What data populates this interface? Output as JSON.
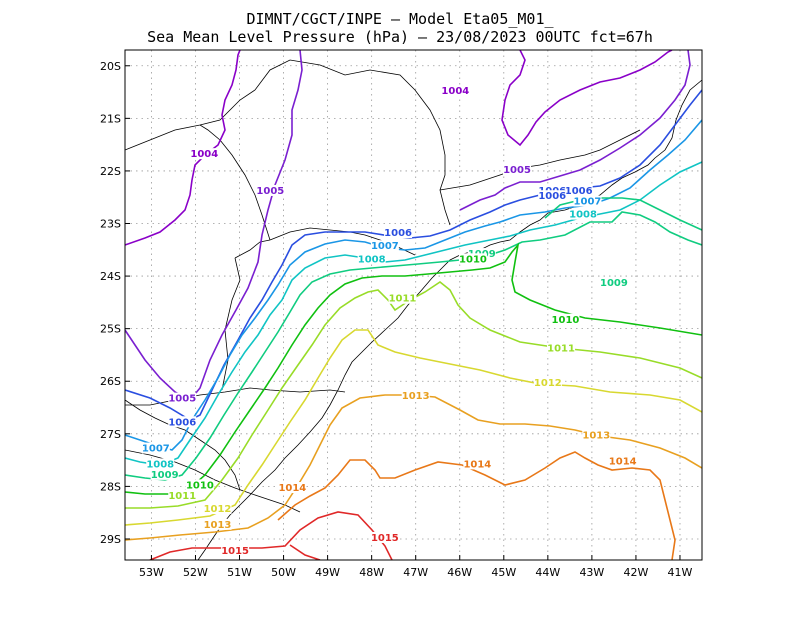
{
  "title_line1": "DIMNT/CGCT/INPE –  Model Eta05_M01_",
  "title_line2": "Sea Mean Level Pressure (hPa) – 23/08/2023 00UTC fct=67h",
  "chart_data": {
    "type": "contour-map",
    "variable": "Sea Mean Level Pressure (hPa)",
    "model": "Eta05_M01_",
    "init_time": "23/08/2023 00UTC",
    "forecast_hour": 67,
    "lon_range": [
      -53.6,
      -40.5
    ],
    "lat_range": [
      -29.4,
      -19.7
    ],
    "lon_ticks": [
      "53W",
      "52W",
      "51W",
      "50W",
      "49W",
      "48W",
      "47W",
      "46W",
      "45W",
      "44W",
      "43W",
      "42W",
      "41W"
    ],
    "lat_ticks": [
      "20S",
      "21S",
      "22S",
      "23S",
      "24S",
      "25S",
      "26S",
      "27S",
      "28S",
      "29S"
    ],
    "grid": true,
    "contour_levels": [
      1004,
      1005,
      1006,
      1007,
      1008,
      1009,
      1010,
      1011,
      1012,
      1013,
      1014,
      1015
    ],
    "contour_colors": {
      "1004": "#8a00c8",
      "1005": "#7a1fd0",
      "1006": "#2a4ee0",
      "1007": "#1a96e6",
      "1008": "#10c4c4",
      "1009": "#10cc80",
      "1010": "#10c010",
      "1011": "#98dc28",
      "1012": "#d8d830",
      "1013": "#e8a020",
      "1014": "#e87818",
      "1015": "#e02828"
    },
    "labels": [
      {
        "text": "1004",
        "level": 1004,
        "lon": -46.1,
        "lat": -20.5
      },
      {
        "text": "1004",
        "level": 1004,
        "lon": -51.8,
        "lat": -21.7
      },
      {
        "text": "1005",
        "level": 1005,
        "lon": -50.3,
        "lat": -22.4
      },
      {
        "text": "1005",
        "level": 1005,
        "lon": -44.7,
        "lat": -22.0
      },
      {
        "text": "1005",
        "level": 1005,
        "lon": -52.3,
        "lat": -26.35
      },
      {
        "text": "1006",
        "level": 1006,
        "lon": -52.3,
        "lat": -26.8
      },
      {
        "text": "1006",
        "level": 1006,
        "lon": -47.4,
        "lat": -23.2
      },
      {
        "text": "1006",
        "level": 1006,
        "lon": -43.3,
        "lat": -22.4
      },
      {
        "text": "1006",
        "level": 1006,
        "lon": -43.9,
        "lat": -22.4
      },
      {
        "text": "1006",
        "level": 1006,
        "lon": -43.9,
        "lat": -22.5
      },
      {
        "text": "1007",
        "level": 1007,
        "lon": -52.9,
        "lat": -27.3
      },
      {
        "text": "1007",
        "level": 1007,
        "lon": -47.7,
        "lat": -23.45
      },
      {
        "text": "1007",
        "level": 1007,
        "lon": -43.1,
        "lat": -22.6
      },
      {
        "text": "1008",
        "level": 1008,
        "lon": -52.8,
        "lat": -27.6
      },
      {
        "text": "1008",
        "level": 1008,
        "lon": -48.0,
        "lat": -23.7
      },
      {
        "text": "1008",
        "level": 1008,
        "lon": -43.2,
        "lat": -22.85
      },
      {
        "text": "1009",
        "level": 1009,
        "lon": -52.7,
        "lat": -27.8
      },
      {
        "text": "1009",
        "level": 1009,
        "lon": -45.5,
        "lat": -23.6
      },
      {
        "text": "1009",
        "level": 1009,
        "lon": -42.5,
        "lat": -24.15
      },
      {
        "text": "1010",
        "level": 1010,
        "lon": -51.9,
        "lat": -28.0
      },
      {
        "text": "1010",
        "level": 1010,
        "lon": -45.7,
        "lat": -23.7
      },
      {
        "text": "1010",
        "level": 1010,
        "lon": -43.6,
        "lat": -24.85
      },
      {
        "text": "1011",
        "level": 1011,
        "lon": -52.3,
        "lat": -28.2
      },
      {
        "text": "1011",
        "level": 1011,
        "lon": -47.3,
        "lat": -24.45
      },
      {
        "text": "1011",
        "level": 1011,
        "lon": -43.7,
        "lat": -25.4
      },
      {
        "text": "1012",
        "level": 1012,
        "lon": -51.5,
        "lat": -28.45
      },
      {
        "text": "1012",
        "level": 1012,
        "lon": -44.0,
        "lat": -26.05
      },
      {
        "text": "1013",
        "level": 1013,
        "lon": -51.5,
        "lat": -28.75
      },
      {
        "text": "1013",
        "level": 1013,
        "lon": -47.0,
        "lat": -26.3
      },
      {
        "text": "1013",
        "level": 1013,
        "lon": -42.9,
        "lat": -27.05
      },
      {
        "text": "1014",
        "level": 1014,
        "lon": -49.8,
        "lat": -28.05
      },
      {
        "text": "1014",
        "level": 1014,
        "lon": -45.6,
        "lat": -27.6
      },
      {
        "text": "1014",
        "level": 1014,
        "lon": -42.3,
        "lat": -27.55
      },
      {
        "text": "1015",
        "level": 1015,
        "lon": -51.1,
        "lat": -29.25
      },
      {
        "text": "1015",
        "level": 1015,
        "lon": -47.7,
        "lat": -29.0
      }
    ]
  }
}
